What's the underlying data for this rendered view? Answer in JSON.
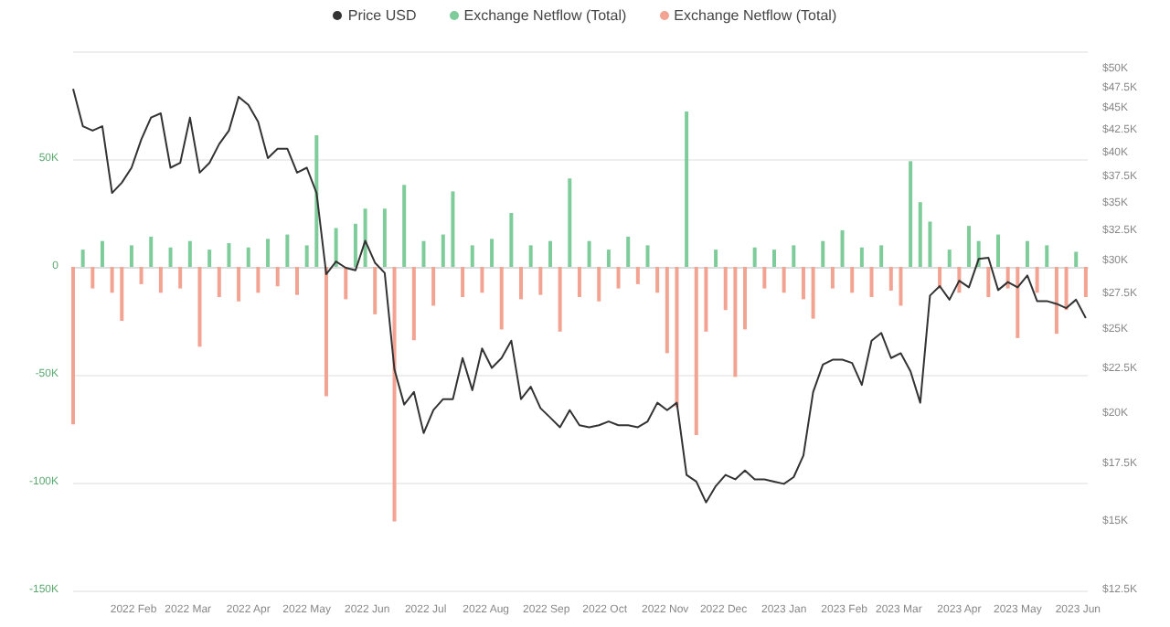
{
  "chart_data": {
    "type": "bar",
    "x": [
      "2022-01-01",
      "2022-01-06",
      "2022-01-11",
      "2022-01-16",
      "2022-01-21",
      "2022-01-26",
      "2022-01-31",
      "2022-02-05",
      "2022-02-10",
      "2022-02-15",
      "2022-02-20",
      "2022-02-25",
      "2022-03-02",
      "2022-03-07",
      "2022-03-12",
      "2022-03-17",
      "2022-03-22",
      "2022-03-27",
      "2022-04-01",
      "2022-04-06",
      "2022-04-11",
      "2022-04-16",
      "2022-04-21",
      "2022-04-26",
      "2022-05-01",
      "2022-05-06",
      "2022-05-11",
      "2022-05-16",
      "2022-05-21",
      "2022-05-26",
      "2022-05-31",
      "2022-06-05",
      "2022-06-10",
      "2022-06-15",
      "2022-06-20",
      "2022-06-25",
      "2022-06-30",
      "2022-07-05",
      "2022-07-10",
      "2022-07-15",
      "2022-07-20",
      "2022-07-25",
      "2022-07-30",
      "2022-08-04",
      "2022-08-09",
      "2022-08-14",
      "2022-08-19",
      "2022-08-24",
      "2022-08-29",
      "2022-09-03",
      "2022-09-08",
      "2022-09-13",
      "2022-09-18",
      "2022-09-23",
      "2022-09-28",
      "2022-10-03",
      "2022-10-08",
      "2022-10-13",
      "2022-10-18",
      "2022-10-23",
      "2022-10-28",
      "2022-11-02",
      "2022-11-07",
      "2022-11-12",
      "2022-11-17",
      "2022-11-22",
      "2022-11-27",
      "2022-12-02",
      "2022-12-07",
      "2022-12-12",
      "2022-12-17",
      "2022-12-22",
      "2022-12-27",
      "2023-01-01",
      "2023-01-06",
      "2023-01-11",
      "2023-01-16",
      "2023-01-21",
      "2023-01-26",
      "2023-01-31",
      "2023-02-05",
      "2023-02-10",
      "2023-02-15",
      "2023-02-20",
      "2023-02-25",
      "2023-03-02",
      "2023-03-07",
      "2023-03-12",
      "2023-03-17",
      "2023-03-22",
      "2023-03-27",
      "2023-04-01",
      "2023-04-06",
      "2023-04-11",
      "2023-04-16",
      "2023-04-21",
      "2023-04-26",
      "2023-05-01",
      "2023-05-06",
      "2023-05-11",
      "2023-05-16",
      "2023-05-21",
      "2023-05-26",
      "2023-05-31",
      "2023-06-05"
    ],
    "series": [
      {
        "name": "Price USD",
        "type": "line",
        "axis": "y2",
        "color": "#333333",
        "values": [
          47500,
          43000,
          42500,
          43000,
          36000,
          37000,
          38500,
          41500,
          44000,
          44500,
          38500,
          39000,
          44000,
          38000,
          39000,
          41000,
          42500,
          46500,
          45500,
          43500,
          39500,
          40500,
          40500,
          38000,
          38500,
          36000,
          29000,
          30000,
          29500,
          29300,
          31700,
          29900,
          29100,
          22500,
          20500,
          21200,
          19000,
          20200,
          20800,
          20800,
          23200,
          21300,
          23800,
          22600,
          23200,
          24300,
          20800,
          21500,
          20300,
          19800,
          19300,
          20200,
          19400,
          19300,
          19400,
          19600,
          19400,
          19400,
          19300,
          19600,
          20600,
          20200,
          20600,
          17000,
          16700,
          15800,
          16500,
          17000,
          16800,
          17200,
          16800,
          16800,
          16700,
          16600,
          16900,
          17900,
          21200,
          22800,
          23100,
          23100,
          22900,
          21600,
          24300,
          24800,
          23200,
          23500,
          22400,
          20600,
          27400,
          28100,
          27100,
          28500,
          28000,
          30200,
          30300,
          27800,
          28400,
          28000,
          28900,
          27000,
          27000,
          26800,
          26500,
          27100,
          25800
        ]
      },
      {
        "name": "Exchange Netflow (Total)",
        "color": "#7fcc9b",
        "values": [
          null,
          8000,
          null,
          12000,
          null,
          null,
          10000,
          null,
          14000,
          null,
          9000,
          null,
          12000,
          null,
          8000,
          null,
          11000,
          null,
          9000,
          null,
          13000,
          null,
          15000,
          null,
          10000,
          61000,
          null,
          18000,
          null,
          20000,
          27000,
          null,
          27000,
          null,
          38000,
          null,
          12000,
          null,
          15000,
          35000,
          null,
          10000,
          null,
          13000,
          null,
          25000,
          null,
          10000,
          null,
          12000,
          null,
          41000,
          null,
          12000,
          null,
          8000,
          null,
          14000,
          null,
          10000,
          null,
          null,
          null,
          72000,
          null,
          null,
          8000,
          null,
          null,
          null,
          9000,
          null,
          8000,
          null,
          10000,
          null,
          null,
          12000,
          null,
          17000,
          null,
          9000,
          null,
          10000,
          null,
          null,
          49000,
          30000,
          21000,
          null,
          8000,
          null,
          19000,
          12000,
          null,
          15000,
          null,
          null,
          12000,
          null,
          10000,
          null,
          null,
          7000,
          null
        ]
      },
      {
        "name": "Exchange Netflow (Total)",
        "color": "#f2a391",
        "values": [
          -73000,
          null,
          -10000,
          null,
          -12000,
          -25000,
          null,
          -8000,
          null,
          -12000,
          null,
          -10000,
          null,
          -37000,
          null,
          -14000,
          null,
          -16000,
          null,
          -12000,
          null,
          -9000,
          null,
          -13000,
          null,
          null,
          -60000,
          null,
          -15000,
          null,
          null,
          -22000,
          null,
          -118000,
          null,
          -34000,
          null,
          -18000,
          null,
          null,
          -14000,
          null,
          -12000,
          null,
          -29000,
          null,
          -15000,
          null,
          -13000,
          null,
          -30000,
          null,
          -14000,
          null,
          -16000,
          null,
          -10000,
          null,
          -8000,
          null,
          -12000,
          -40000,
          -65000,
          null,
          -78000,
          -30000,
          null,
          -20000,
          -51000,
          -29000,
          null,
          -10000,
          null,
          -12000,
          null,
          -15000,
          -24000,
          null,
          -10000,
          null,
          -12000,
          null,
          -14000,
          null,
          -11000,
          -18000,
          null,
          null,
          null,
          -10000,
          null,
          -12000,
          null,
          null,
          -14000,
          null,
          -10000,
          -33000,
          null,
          -12000,
          null,
          -31000,
          -20000,
          null,
          -14000
        ]
      }
    ],
    "xlim": [
      "2022-01-01",
      "2023-06-06"
    ],
    "xticks": [
      {
        "value": "2022-02-01",
        "label": "2022 Feb"
      },
      {
        "value": "2022-03-01",
        "label": "2022 Mar"
      },
      {
        "value": "2022-04-01",
        "label": "2022 Apr"
      },
      {
        "value": "2022-05-01",
        "label": "2022 May"
      },
      {
        "value": "2022-06-01",
        "label": "2022 Jun"
      },
      {
        "value": "2022-07-01",
        "label": "2022 Jul"
      },
      {
        "value": "2022-08-01",
        "label": "2022 Aug"
      },
      {
        "value": "2022-09-01",
        "label": "2022 Sep"
      },
      {
        "value": "2022-10-01",
        "label": "2022 Oct"
      },
      {
        "value": "2022-11-01",
        "label": "2022 Nov"
      },
      {
        "value": "2022-12-01",
        "label": "2022 Dec"
      },
      {
        "value": "2023-01-01",
        "label": "2023 Jan"
      },
      {
        "value": "2023-02-01",
        "label": "2023 Feb"
      },
      {
        "value": "2023-03-01",
        "label": "2023 Mar"
      },
      {
        "value": "2023-04-01",
        "label": "2023 Apr"
      },
      {
        "value": "2023-05-01",
        "label": "2023 May"
      },
      {
        "value": "2023-06-01",
        "label": "2023 Jun"
      }
    ],
    "ylim": [
      -150000,
      100000
    ],
    "yticks": [
      {
        "value": -150000,
        "label": "-150K"
      },
      {
        "value": -100000,
        "label": "-100K"
      },
      {
        "value": -50000,
        "label": "-50K"
      },
      0,
      {
        "value": 50000,
        "label": "50K"
      },
      {
        "value": 100000,
        "label": null
      }
    ],
    "y2lim": [
      12500,
      52500
    ],
    "y2ticks": [
      {
        "value": 12500,
        "label": "$12.5K"
      },
      {
        "value": 15000,
        "label": "$15K"
      },
      {
        "value": 17500,
        "label": "$17.5K"
      },
      {
        "value": 20000,
        "label": "$20K"
      },
      {
        "value": 22500,
        "label": "$22.5K"
      },
      {
        "value": 25000,
        "label": "$25K"
      },
      {
        "value": 27500,
        "label": "$27.5K"
      },
      {
        "value": 30000,
        "label": "$30K"
      },
      {
        "value": 32500,
        "label": "$32.5K"
      },
      {
        "value": 35000,
        "label": "$35K"
      },
      {
        "value": 37500,
        "label": "$37.5K"
      },
      {
        "value": 40000,
        "label": "$40K"
      },
      {
        "value": 42500,
        "label": "$42.5K"
      },
      {
        "value": 45000,
        "label": "$45K"
      },
      {
        "value": 47500,
        "label": "$47.5K"
      },
      {
        "value": 50000,
        "label": "$50K"
      },
      {
        "value": 52500,
        "label": null
      }
    ],
    "log": "y2",
    "grid": "y",
    "legend": "top",
    "marker": "none"
  }
}
